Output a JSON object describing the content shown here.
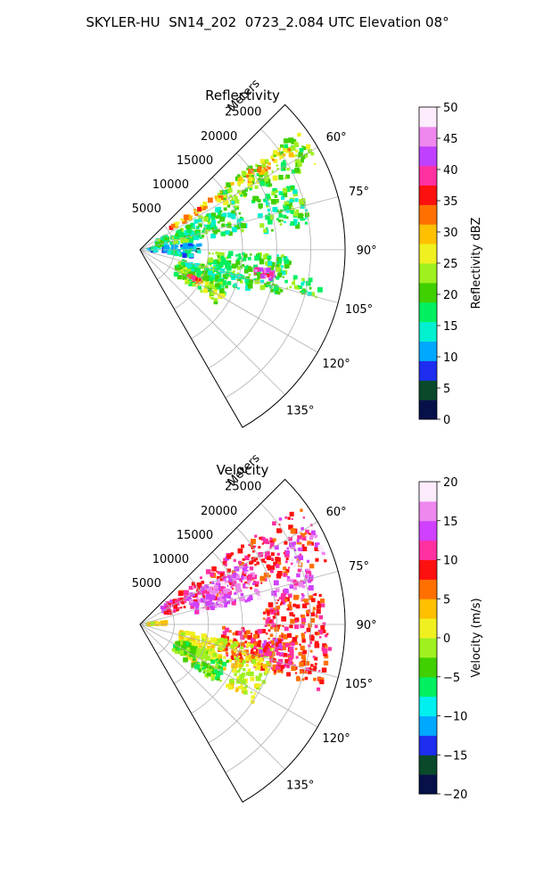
{
  "figure": {
    "title": "SKYLER-HU  SN14_202  0723_2.084 UTC Elevation 08°"
  },
  "chart_data": [
    {
      "type": "heatmap",
      "subtype": "polar-sector-radar-ppi",
      "title": "Reflectivity",
      "range_label": "Meters",
      "range_ticks": [
        5000,
        10000,
        15000,
        20000,
        25000
      ],
      "range_max": 30000,
      "azimuth_range_deg": [
        45,
        150
      ],
      "azimuth_ticks": [
        "60°",
        "75°",
        "90°",
        "105°",
        "120°",
        "135°"
      ],
      "grid": true,
      "colorbar": {
        "label": "Reflectivity dBZ",
        "min": 0,
        "max": 50,
        "ticks": [
          "0",
          "5",
          "10",
          "15",
          "20",
          "25",
          "30",
          "35",
          "40",
          "45",
          "50"
        ],
        "stops": [
          "#08104a",
          "#0a4a2a",
          "#1e2ef0",
          "#00a8ff",
          "#00f0d0",
          "#00f060",
          "#40d000",
          "#a0f020",
          "#f0f020",
          "#ffc000",
          "#ff7000",
          "#ff1010",
          "#ff30a0",
          "#c040ff",
          "#ee88ee",
          "#fcecfc"
        ]
      },
      "echo_regions": [
        {
          "az": [
            53,
            64
          ],
          "r": [
            14000,
            29000
          ],
          "value": 22
        },
        {
          "az": [
            54,
            58
          ],
          "r": [
            5000,
            27000
          ],
          "value": 30
        },
        {
          "az": [
            62,
            80
          ],
          "r": [
            2500,
            16000
          ],
          "value": 18
        },
        {
          "az": [
            66,
            82
          ],
          "r": [
            18000,
            25000
          ],
          "value": 19
        },
        {
          "az": [
            84,
            92
          ],
          "r": [
            1000,
            9000
          ],
          "value": 11
        },
        {
          "az": [
            90,
            98
          ],
          "r": [
            4000,
            8000
          ],
          "value": 13
        },
        {
          "az": [
            92,
            108
          ],
          "r": [
            10000,
            22000
          ],
          "value": 20
        },
        {
          "az": [
            99,
            103
          ],
          "r": [
            17000,
            20000
          ],
          "value": 41
        },
        {
          "az": [
            104,
            112
          ],
          "r": [
            6000,
            17000
          ],
          "value": 18
        },
        {
          "az": [
            112,
            125
          ],
          "r": [
            6000,
            14000
          ],
          "value": 22
        },
        {
          "az": [
            117,
            119
          ],
          "r": [
            8000,
            10000
          ],
          "value": 35
        },
        {
          "az": [
            100,
            105
          ],
          "r": [
            22000,
            27000
          ],
          "value": 19
        }
      ]
    },
    {
      "type": "heatmap",
      "subtype": "polar-sector-radar-ppi",
      "title": "Velocity",
      "range_label": "Meters",
      "range_ticks": [
        5000,
        10000,
        15000,
        20000,
        25000
      ],
      "range_max": 30000,
      "azimuth_range_deg": [
        45,
        150
      ],
      "azimuth_ticks": [
        "60°",
        "75°",
        "90°",
        "105°",
        "120°",
        "135°"
      ],
      "grid": true,
      "colorbar": {
        "label": "Velocity (m/s)",
        "min": -20,
        "max": 20,
        "ticks": [
          "−20",
          "−15",
          "−10",
          "−5",
          "0",
          "5",
          "10",
          "15",
          "20"
        ],
        "stops": [
          "#08104a",
          "#0a4a2a",
          "#1e2ef0",
          "#00a8ff",
          "#00f0f0",
          "#00f060",
          "#40d000",
          "#a0f020",
          "#f0f020",
          "#ffc000",
          "#ff7000",
          "#ff1010",
          "#ff30a0",
          "#d040ff",
          "#ee88ee",
          "#fcecfc"
        ]
      },
      "velocity_regions": [
        {
          "az": [
            52,
            72
          ],
          "r": [
            4000,
            29000
          ],
          "value": 10
        },
        {
          "az": [
            60,
            78
          ],
          "r": [
            8000,
            18000
          ],
          "value": 15
        },
        {
          "az": [
            62,
            70
          ],
          "r": [
            24000,
            29000
          ],
          "value": 16
        },
        {
          "az": [
            72,
            82
          ],
          "r": [
            20000,
            26000
          ],
          "value": 14
        },
        {
          "az": [
            80,
            92
          ],
          "r": [
            18000,
            27000
          ],
          "value": 9
        },
        {
          "az": [
            84,
            90
          ],
          "r": [
            1000,
            4000
          ],
          "value": 2
        },
        {
          "az": [
            92,
            110
          ],
          "r": [
            12000,
            28000
          ],
          "value": 8
        },
        {
          "az": [
            100,
            125
          ],
          "r": [
            6000,
            20000
          ],
          "value": 1
        },
        {
          "az": [
            112,
            128
          ],
          "r": [
            6000,
            14000
          ],
          "value": -3
        },
        {
          "az": [
            96,
            106
          ],
          "r": [
            18000,
            23000
          ],
          "value": 11
        }
      ]
    }
  ]
}
